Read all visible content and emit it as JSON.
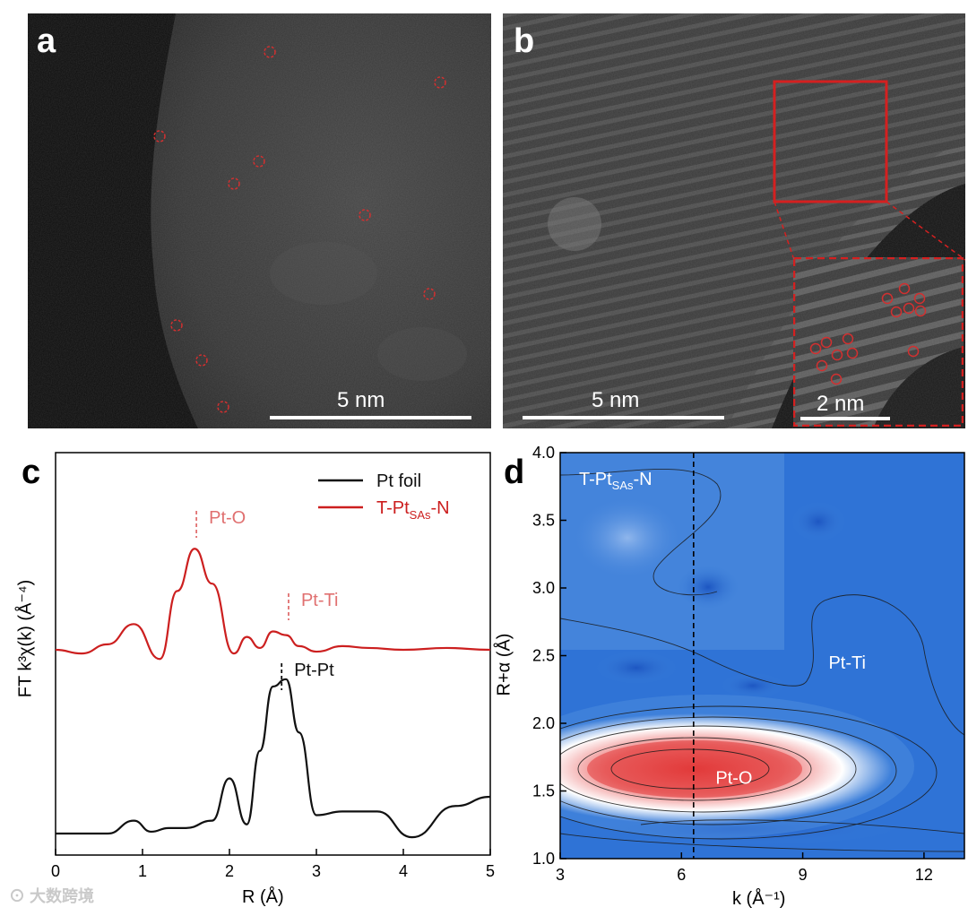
{
  "figure": {
    "panels": {
      "a": {
        "letter": "a",
        "scale_bar": "5 nm"
      },
      "b": {
        "letter": "b",
        "scale_bar": "5 nm",
        "inset_scale_bar": "2 nm"
      },
      "c": {
        "letter": "c"
      },
      "d": {
        "letter": "d"
      }
    },
    "watermark": "大数跨境"
  },
  "chart_data": [
    {
      "type": "line",
      "panel": "c",
      "xlabel": "R (Å)",
      "ylabel": "FT k³χ(k) (Å⁻⁴)",
      "xlim": [
        0,
        5
      ],
      "x_ticks": [
        "0",
        "1",
        "2",
        "3",
        "4",
        "5"
      ],
      "legend": {
        "placement": "top-right",
        "items": [
          "Pt foil",
          "T-Pt_SAs-N"
        ]
      },
      "series": [
        {
          "name": "T-Pt_SAs-N",
          "color": "#cc1f1f",
          "offset": 1.0,
          "x": [
            0,
            0.3,
            0.6,
            0.9,
            1.2,
            1.4,
            1.6,
            1.8,
            2.05,
            2.2,
            2.35,
            2.5,
            2.65,
            2.8,
            3.0,
            3.3,
            3.6,
            4.0,
            4.5,
            5.0
          ],
          "y": [
            0.0,
            -0.02,
            0.03,
            0.14,
            -0.05,
            0.32,
            0.55,
            0.36,
            -0.02,
            0.07,
            0.01,
            0.1,
            0.08,
            0.02,
            -0.01,
            0.02,
            0.01,
            0.0,
            0.01,
            0.0
          ]
        },
        {
          "name": "Pt foil",
          "color": "#111111",
          "offset": 0.0,
          "x": [
            0,
            0.3,
            0.6,
            0.9,
            1.1,
            1.3,
            1.5,
            1.8,
            2.0,
            2.2,
            2.35,
            2.5,
            2.65,
            2.8,
            3.0,
            3.3,
            3.7,
            4.1,
            4.6,
            5.0
          ],
          "y": [
            0.0,
            0.0,
            0.0,
            0.07,
            0.01,
            0.03,
            0.03,
            0.07,
            0.3,
            0.05,
            0.45,
            0.8,
            0.84,
            0.55,
            0.1,
            0.12,
            0.12,
            -0.02,
            0.15,
            0.2
          ]
        }
      ],
      "annotations": [
        {
          "text": "Pt-O",
          "x": 1.62,
          "color": "#e07070"
        },
        {
          "text": "Pt-Ti",
          "x": 2.68,
          "color": "#e07070"
        },
        {
          "text": "Pt-Pt",
          "x": 2.6,
          "color": "#111111"
        }
      ]
    },
    {
      "type": "heatmap",
      "panel": "d",
      "xlabel": "k (Å⁻¹)",
      "ylabel": "R+α (Å)",
      "xlim": [
        3,
        13
      ],
      "ylim": [
        1.0,
        4.0
      ],
      "x_ticks": [
        "3",
        "6",
        "9",
        "12"
      ],
      "y_ticks": [
        "1.0",
        "1.5",
        "2.0",
        "2.5",
        "3.0",
        "3.5",
        "4.0"
      ],
      "title": "T-Pt",
      "title_sub": "SAs",
      "title_suffix": "-N",
      "dashed_line_k": 6.3,
      "labels": [
        {
          "text": "Pt-Ti",
          "k": 10.1,
          "r": 2.45
        },
        {
          "text": "Pt-O",
          "k": 7.3,
          "r": 1.6
        }
      ],
      "colormap": [
        "#1f5fc8",
        "#3b7fd9",
        "#ffffff",
        "#e23a3a"
      ]
    }
  ]
}
